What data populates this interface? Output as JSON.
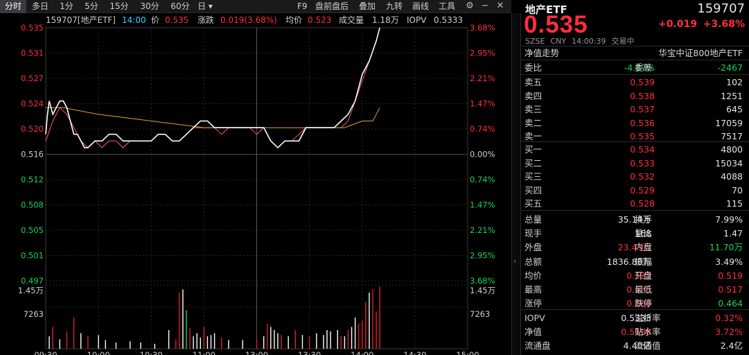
{
  "toolbar": {
    "periods": [
      "分时",
      "多日",
      "1分",
      "5分",
      "15分",
      "30分",
      "60分",
      "日"
    ],
    "tools": [
      "F9",
      "盘前盘后",
      "叠加",
      "九转",
      "画线",
      "工具"
    ]
  },
  "chart_info": {
    "code_name": "159707[地产ETF]",
    "time": "14:00",
    "price_label": "价",
    "price": "0.535",
    "change_label": "涨跌",
    "change": "0.019(3.68%)",
    "avg_label": "均价",
    "avg": "0.523",
    "volume_label": "成交量",
    "volume": "1.18万",
    "iopv_label": "IOPV",
    "iopv": "0.5333"
  },
  "quote": {
    "name": "地产ETF",
    "code": "159707",
    "price": "0.535",
    "change": "+0.019",
    "change_pct": "+3.68%",
    "market": "SZSE",
    "currency": "CNY",
    "timestamp": "14:00:39",
    "status": "交易中"
  },
  "nav": {
    "label": "净值走势",
    "index": "华宝中证800地产ETF"
  },
  "committee": {
    "ratio_label": "委比",
    "ratio": "-4.87%",
    "diff_label": "委差",
    "diff": "-2467"
  },
  "sells": [
    {
      "label": "卖五",
      "price": "0.539",
      "qty": "102"
    },
    {
      "label": "卖四",
      "price": "0.538",
      "qty": "1251"
    },
    {
      "label": "卖三",
      "price": "0.537",
      "qty": "645"
    },
    {
      "label": "卖二",
      "price": "0.536",
      "qty": "17059"
    },
    {
      "label": "卖一",
      "price": "0.535",
      "qty": "7517"
    }
  ],
  "buys": [
    {
      "label": "买一",
      "price": "0.534",
      "qty": "4800"
    },
    {
      "label": "买二",
      "price": "0.533",
      "qty": "15034"
    },
    {
      "label": "买三",
      "price": "0.532",
      "qty": "4088"
    },
    {
      "label": "买四",
      "price": "0.529",
      "qty": "70"
    },
    {
      "label": "买五",
      "price": "0.528",
      "qty": "115"
    }
  ],
  "stats": [
    {
      "l1": "总量",
      "v1": "35.14万",
      "c1": "white",
      "l2": "换手",
      "v2": "7.99%",
      "c2": "white"
    },
    {
      "l1": "现手",
      "v1": "168",
      "c1": "white",
      "l2": "量比",
      "v2": "1.47",
      "c2": "white"
    },
    {
      "l1": "外盘",
      "v1": "23.43万",
      "c1": "red",
      "l2": "内盘",
      "v2": "11.70万",
      "c2": "green"
    },
    {
      "l1": "总额",
      "v1": "1836.88万",
      "c1": "white",
      "l2": "振幅",
      "v2": "3.49%",
      "c2": "white"
    },
    {
      "l1": "均价",
      "v1": "0.523",
      "c1": "red",
      "l2": "开盘",
      "v2": "0.519",
      "c2": "red"
    },
    {
      "l1": "最高",
      "v1": "0.535",
      "c1": "red",
      "l2": "最低",
      "v2": "0.517",
      "c2": "red"
    },
    {
      "l1": "涨停",
      "v1": "0.568",
      "c1": "red",
      "l2": "跌停",
      "v2": "0.464",
      "c2": "green"
    }
  ],
  "extra": [
    {
      "l1": "IOPV",
      "v1": "0.5333",
      "c1": "white",
      "l2": "溢折率",
      "v2": "0.32%",
      "c2": "red"
    },
    {
      "l1": "净值",
      "v1": "0.5158",
      "c1": "red",
      "l2": "贴水率",
      "v2": "3.72%",
      "c2": "red"
    },
    {
      "l1": "流通盘",
      "v1": "4.40亿",
      "c1": "white",
      "l2": "流通值",
      "v2": "2.4亿",
      "c2": "white"
    }
  ],
  "chart_data": {
    "type": "line",
    "price_axis": [
      "0.535",
      "0.531",
      "0.527",
      "0.524",
      "0.520",
      "0.516",
      "0.512",
      "0.508",
      "0.505",
      "0.501",
      "0.497"
    ],
    "pct_axis": [
      "3.68%",
      "2.95%",
      "2.21%",
      "1.47%",
      "0.74%",
      "0.00%",
      "0.74%",
      "1.47%",
      "2.21%",
      "2.95%",
      "3.68%"
    ],
    "volume_axis": [
      "1.45万",
      "7263"
    ],
    "time_axis": [
      "09:30",
      "10:00",
      "10:30",
      "11:00",
      "13:00",
      "13:30",
      "14:00",
      "14:30",
      "15:00"
    ],
    "prev_close": 0.516,
    "ylim": [
      0.497,
      0.535
    ],
    "series": [
      {
        "color": "#ffffff",
        "points": [
          [
            0,
            0.519
          ],
          [
            1,
            0.522
          ],
          [
            2,
            0.524
          ],
          [
            4,
            0.522
          ],
          [
            6,
            0.523
          ],
          [
            8,
            0.524
          ],
          [
            10,
            0.524
          ],
          [
            12,
            0.523
          ],
          [
            14,
            0.521
          ],
          [
            16,
            0.519
          ],
          [
            18,
            0.519
          ],
          [
            20,
            0.518
          ],
          [
            22,
            0.517
          ],
          [
            24,
            0.517
          ],
          [
            28,
            0.518
          ],
          [
            32,
            0.518
          ],
          [
            36,
            0.519
          ],
          [
            40,
            0.519
          ],
          [
            44,
            0.518
          ],
          [
            48,
            0.518
          ],
          [
            52,
            0.518
          ],
          [
            56,
            0.518
          ],
          [
            60,
            0.518
          ],
          [
            64,
            0.519
          ],
          [
            68,
            0.519
          ],
          [
            72,
            0.518
          ],
          [
            76,
            0.518
          ],
          [
            80,
            0.519
          ],
          [
            84,
            0.52
          ],
          [
            88,
            0.521
          ],
          [
            92,
            0.521
          ],
          [
            96,
            0.52
          ],
          [
            100,
            0.52
          ],
          [
            104,
            0.52
          ],
          [
            108,
            0.52
          ],
          [
            112,
            0.52
          ],
          [
            116,
            0.52
          ],
          [
            120,
            0.52
          ],
          [
            124,
            0.52
          ],
          [
            128,
            0.518
          ],
          [
            132,
            0.517
          ],
          [
            136,
            0.518
          ],
          [
            140,
            0.518
          ],
          [
            144,
            0.518
          ],
          [
            148,
            0.52
          ],
          [
            152,
            0.52
          ],
          [
            156,
            0.52
          ],
          [
            160,
            0.52
          ],
          [
            164,
            0.52
          ],
          [
            168,
            0.521
          ],
          [
            172,
            0.522
          ],
          [
            176,
            0.524
          ],
          [
            180,
            0.528
          ],
          [
            184,
            0.53
          ],
          [
            188,
            0.533
          ],
          [
            190,
            0.535
          ]
        ]
      },
      {
        "color": "#e8a020",
        "points": [
          [
            0,
            0.523
          ],
          [
            10,
            0.523
          ],
          [
            30,
            0.522
          ],
          [
            60,
            0.521
          ],
          [
            90,
            0.52
          ],
          [
            120,
            0.52
          ],
          [
            150,
            0.52
          ],
          [
            170,
            0.52
          ],
          [
            180,
            0.521
          ],
          [
            186,
            0.521
          ],
          [
            190,
            0.523
          ]
        ]
      },
      {
        "color": "#ff5a73",
        "points": [
          [
            0,
            0.518
          ],
          [
            4,
            0.521
          ],
          [
            8,
            0.523
          ],
          [
            12,
            0.522
          ],
          [
            16,
            0.52
          ],
          [
            20,
            0.518
          ],
          [
            24,
            0.517
          ],
          [
            28,
            0.518
          ],
          [
            32,
            0.517
          ],
          [
            36,
            0.518
          ],
          [
            40,
            0.518
          ],
          [
            44,
            0.517
          ],
          [
            48,
            0.518
          ],
          [
            52,
            0.518
          ],
          [
            56,
            0.518
          ],
          [
            60,
            0.518
          ],
          [
            64,
            0.519
          ],
          [
            68,
            0.519
          ],
          [
            72,
            0.518
          ],
          [
            76,
            0.518
          ],
          [
            80,
            0.519
          ],
          [
            84,
            0.52
          ],
          [
            88,
            0.52
          ],
          [
            92,
            0.52
          ],
          [
            96,
            0.52
          ],
          [
            100,
            0.519
          ],
          [
            104,
            0.52
          ],
          [
            108,
            0.52
          ],
          [
            112,
            0.52
          ],
          [
            116,
            0.52
          ],
          [
            120,
            0.519
          ],
          [
            124,
            0.52
          ],
          [
            128,
            0.518
          ],
          [
            132,
            0.517
          ],
          [
            136,
            0.518
          ],
          [
            140,
            0.518
          ],
          [
            144,
            0.519
          ],
          [
            148,
            0.52
          ],
          [
            152,
            0.52
          ],
          [
            156,
            0.52
          ],
          [
            160,
            0.52
          ],
          [
            164,
            0.52
          ],
          [
            168,
            0.52
          ],
          [
            172,
            0.521
          ],
          [
            176,
            0.524
          ],
          [
            180,
            0.527
          ],
          [
            184,
            0.53
          ],
          [
            188,
            0.533
          ],
          [
            190,
            0.535
          ]
        ]
      }
    ],
    "volume": [
      [
        2,
        0.2,
        "w"
      ],
      [
        4,
        0.35,
        "r"
      ],
      [
        8,
        0.15,
        "w"
      ],
      [
        12,
        0.28,
        "r"
      ],
      [
        16,
        0.5,
        "r"
      ],
      [
        20,
        0.25,
        "w"
      ],
      [
        24,
        0.2,
        "r"
      ],
      [
        30,
        0.22,
        "w"
      ],
      [
        34,
        0.14,
        "w"
      ],
      [
        40,
        0.1,
        "w"
      ],
      [
        48,
        0.12,
        "w"
      ],
      [
        54,
        0.1,
        "w"
      ],
      [
        62,
        0.08,
        "w"
      ],
      [
        70,
        0.3,
        "w"
      ],
      [
        74,
        0.15,
        "r"
      ],
      [
        76,
        0.9,
        "r"
      ],
      [
        78,
        0.95,
        "w"
      ],
      [
        80,
        0.62,
        "g"
      ],
      [
        82,
        0.33,
        "r"
      ],
      [
        84,
        0.2,
        "w"
      ],
      [
        86,
        0.25,
        "w"
      ],
      [
        88,
        0.18,
        "w"
      ],
      [
        90,
        0.35,
        "r"
      ],
      [
        92,
        0.2,
        "w"
      ],
      [
        94,
        0.22,
        "w"
      ],
      [
        96,
        0.25,
        "w"
      ],
      [
        100,
        0.18,
        "r"
      ],
      [
        104,
        0.14,
        "w"
      ],
      [
        112,
        0.14,
        "w"
      ],
      [
        120,
        0.15,
        "r"
      ],
      [
        124,
        0.2,
        "w"
      ],
      [
        126,
        0.4,
        "r"
      ],
      [
        128,
        0.35,
        "w"
      ],
      [
        130,
        0.3,
        "w"
      ],
      [
        132,
        0.25,
        "w"
      ],
      [
        134,
        0.22,
        "r"
      ],
      [
        138,
        0.2,
        "w"
      ],
      [
        142,
        0.3,
        "r"
      ],
      [
        146,
        0.22,
        "w"
      ],
      [
        150,
        0.2,
        "r"
      ],
      [
        154,
        0.25,
        "w"
      ],
      [
        158,
        0.22,
        "w"
      ],
      [
        160,
        0.3,
        "w"
      ],
      [
        162,
        0.28,
        "w"
      ],
      [
        166,
        0.3,
        "w"
      ],
      [
        168,
        0.2,
        "r"
      ],
      [
        170,
        0.2,
        "w"
      ],
      [
        172,
        0.3,
        "r"
      ],
      [
        174,
        0.35,
        "w"
      ],
      [
        176,
        0.5,
        "w"
      ],
      [
        178,
        0.4,
        "r"
      ],
      [
        180,
        0.45,
        "r"
      ],
      [
        182,
        0.75,
        "r"
      ],
      [
        184,
        0.9,
        "w"
      ],
      [
        186,
        0.95,
        "r"
      ],
      [
        188,
        0.6,
        "r"
      ],
      [
        190,
        1.0,
        "r"
      ]
    ]
  }
}
